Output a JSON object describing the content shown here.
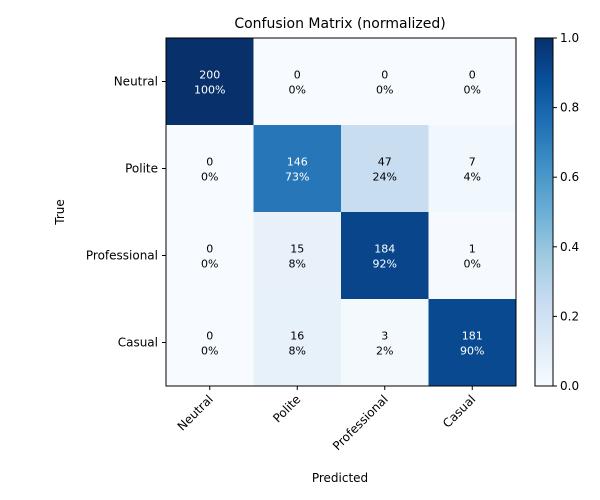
{
  "chart_data": {
    "type": "heatmap",
    "title": "Confusion Matrix (normalized)",
    "xlabel": "Predicted",
    "ylabel": "True",
    "x_categories": [
      "Neutral",
      "Polite",
      "Professional",
      "Casual"
    ],
    "y_categories": [
      "Neutral",
      "Polite",
      "Professional",
      "Casual"
    ],
    "counts": [
      [
        200,
        0,
        0,
        0
      ],
      [
        0,
        146,
        47,
        7
      ],
      [
        0,
        15,
        184,
        1
      ],
      [
        0,
        16,
        3,
        181
      ]
    ],
    "percent_labels": [
      [
        "100%",
        "0%",
        "0%",
        "0%"
      ],
      [
        "0%",
        "73%",
        "24%",
        "4%"
      ],
      [
        "0%",
        "8%",
        "92%",
        "0%"
      ],
      [
        "0%",
        "8%",
        "2%",
        "90%"
      ]
    ],
    "values": [
      [
        1.0,
        0.0,
        0.0,
        0.0
      ],
      [
        0.0,
        0.73,
        0.235,
        0.035
      ],
      [
        0.0,
        0.075,
        0.92,
        0.005
      ],
      [
        0.0,
        0.08,
        0.015,
        0.905
      ]
    ],
    "colorbar": {
      "range": [
        0.0,
        1.0
      ],
      "ticks": [
        "0.0",
        "0.2",
        "0.4",
        "0.6",
        "0.8",
        "1.0"
      ],
      "colormap": "Blues"
    }
  }
}
